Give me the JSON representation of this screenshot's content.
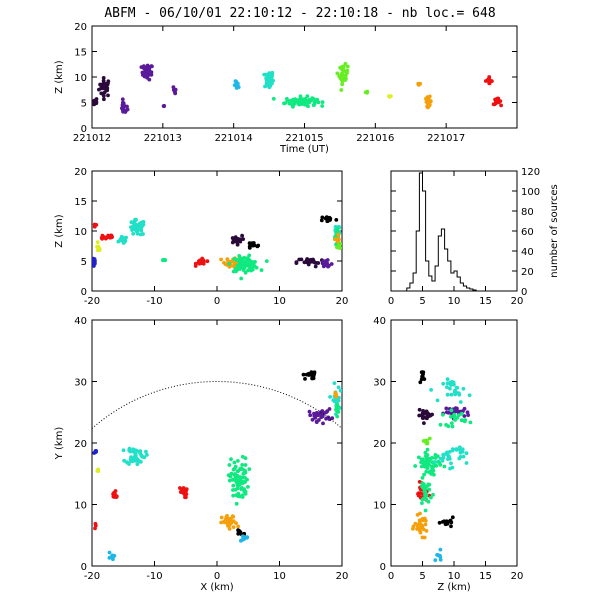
{
  "title": "ABFM - 06/10/01 22:10:12 - 22:10:18 - nb loc.=     648",
  "colors": {
    "black": "#000000",
    "eggplant": "#2a0a3a",
    "purple": "#5a1a9a",
    "blue": "#2222cc",
    "cyan": "#1fb6e8",
    "aqua": "#22e0c8",
    "green": "#10e880",
    "lime": "#66ee22",
    "yellow": "#ddee22",
    "orange": "#f5a00a",
    "red": "#ee1111"
  },
  "chart_data": [
    {
      "id": "time-height",
      "type": "scatter",
      "xlabel": "Time (UT)",
      "ylabel": "Z (km)",
      "xlim": [
        221012,
        221018
      ],
      "ylim": [
        0,
        20
      ],
      "x_ticks": [
        "221012",
        "221013",
        "221014",
        "221015",
        "221016",
        "221017"
      ],
      "y_ticks": [
        "0",
        "5",
        "10",
        "15",
        "20"
      ],
      "clusters": [
        {
          "color": "eggplant",
          "x": 221012.18,
          "y": 8.0,
          "sx": 0.08,
          "sy": 1.8,
          "n": 30
        },
        {
          "color": "eggplant",
          "x": 221012.05,
          "y": 5.0,
          "sx": 0.04,
          "sy": 0.9,
          "n": 8
        },
        {
          "color": "purple",
          "x": 221012.78,
          "y": 11.0,
          "sx": 0.08,
          "sy": 1.5,
          "n": 30
        },
        {
          "color": "purple",
          "x": 221012.45,
          "y": 4.0,
          "sx": 0.05,
          "sy": 1.3,
          "n": 16
        },
        {
          "color": "purple",
          "x": 221013.15,
          "y": 7.0,
          "sx": 0.04,
          "sy": 1.2,
          "n": 6
        },
        {
          "color": "purple",
          "x": 221013.02,
          "y": 4.2,
          "sx": 0.02,
          "sy": 0.3,
          "n": 3
        },
        {
          "color": "cyan",
          "x": 221014.05,
          "y": 8.3,
          "sx": 0.04,
          "sy": 0.8,
          "n": 8
        },
        {
          "color": "aqua",
          "x": 221014.5,
          "y": 9.5,
          "sx": 0.06,
          "sy": 1.8,
          "n": 40
        },
        {
          "color": "green",
          "x": 221014.95,
          "y": 5.2,
          "sx": 0.22,
          "sy": 0.9,
          "n": 90
        },
        {
          "color": "lime",
          "x": 221015.55,
          "y": 10.5,
          "sx": 0.06,
          "sy": 1.8,
          "n": 35
        },
        {
          "color": "lime",
          "x": 221015.88,
          "y": 7.0,
          "sx": 0.03,
          "sy": 0.4,
          "n": 4
        },
        {
          "color": "yellow",
          "x": 221016.2,
          "y": 6.3,
          "sx": 0.03,
          "sy": 0.3,
          "n": 3
        },
        {
          "color": "orange",
          "x": 221016.62,
          "y": 8.6,
          "sx": 0.03,
          "sy": 0.3,
          "n": 5
        },
        {
          "color": "orange",
          "x": 221016.75,
          "y": 5.2,
          "sx": 0.04,
          "sy": 0.9,
          "n": 22
        },
        {
          "color": "red",
          "x": 221017.6,
          "y": 9.3,
          "sx": 0.05,
          "sy": 0.6,
          "n": 12
        },
        {
          "color": "red",
          "x": 221017.72,
          "y": 5.2,
          "sx": 0.05,
          "sy": 0.6,
          "n": 20
        }
      ]
    },
    {
      "id": "x-height",
      "type": "scatter",
      "xlabel": "",
      "ylabel": "Z (km)",
      "xlim": [
        -20,
        20
      ],
      "ylim": [
        0,
        20
      ],
      "x_ticks": [
        "-20",
        "-10",
        "0",
        "10",
        "20"
      ],
      "y_ticks": [
        "0",
        "5",
        "10",
        "15",
        "20"
      ],
      "clusters": [
        {
          "color": "red",
          "x": -17.5,
          "y": 9.0,
          "sx": 1.2,
          "sy": 0.5,
          "n": 16
        },
        {
          "color": "red",
          "x": -19.5,
          "y": 11.0,
          "sx": 0.3,
          "sy": 0.5,
          "n": 5
        },
        {
          "color": "blue",
          "x": -19.7,
          "y": 5.0,
          "sx": 0.3,
          "sy": 1.5,
          "n": 12
        },
        {
          "color": "yellow",
          "x": -19.0,
          "y": 7.0,
          "sx": 0.4,
          "sy": 0.7,
          "n": 6
        },
        {
          "color": "aqua",
          "x": -12.8,
          "y": 10.5,
          "sx": 1.3,
          "sy": 1.3,
          "n": 45
        },
        {
          "color": "aqua",
          "x": -15.0,
          "y": 8.5,
          "sx": 0.6,
          "sy": 0.6,
          "n": 14
        },
        {
          "color": "green",
          "x": -8.5,
          "y": 5.0,
          "sx": 0.4,
          "sy": 0.3,
          "n": 5
        },
        {
          "color": "red",
          "x": -2.5,
          "y": 4.8,
          "sx": 0.8,
          "sy": 0.5,
          "n": 20
        },
        {
          "color": "orange",
          "x": 2.8,
          "y": 4.8,
          "sx": 1.5,
          "sy": 0.9,
          "n": 35
        },
        {
          "color": "green",
          "x": 4.5,
          "y": 4.5,
          "sx": 2.2,
          "sy": 1.2,
          "n": 70
        },
        {
          "color": "eggplant",
          "x": 3.0,
          "y": 8.5,
          "sx": 1.0,
          "sy": 0.7,
          "n": 18
        },
        {
          "color": "black",
          "x": 5.5,
          "y": 7.5,
          "sx": 1.5,
          "sy": 0.6,
          "n": 10
        },
        {
          "color": "eggplant",
          "x": 15.0,
          "y": 4.8,
          "sx": 2.2,
          "sy": 0.8,
          "n": 30
        },
        {
          "color": "purple",
          "x": 17.5,
          "y": 4.5,
          "sx": 1.0,
          "sy": 1.0,
          "n": 14
        },
        {
          "color": "black",
          "x": 17.8,
          "y": 12.0,
          "sx": 1.2,
          "sy": 0.5,
          "n": 14
        },
        {
          "color": "aqua",
          "x": 19.2,
          "y": 10.0,
          "sx": 0.5,
          "sy": 1.5,
          "n": 22
        },
        {
          "color": "green",
          "x": 19.3,
          "y": 9.0,
          "sx": 0.4,
          "sy": 1.5,
          "n": 12
        },
        {
          "color": "orange",
          "x": 19.3,
          "y": 8.5,
          "sx": 0.3,
          "sy": 1.0,
          "n": 8
        },
        {
          "color": "lime",
          "x": 19.5,
          "y": 7.5,
          "sx": 0.3,
          "sy": 0.7,
          "n": 5
        }
      ]
    },
    {
      "id": "histogram",
      "type": "line",
      "xlabel": "",
      "ylabel": "number of sources",
      "xlim": [
        0,
        20
      ],
      "ylim": [
        0,
        120
      ],
      "x_ticks": [
        "0",
        "5",
        "10",
        "15",
        "20"
      ],
      "y_ticks": [
        "0",
        "20",
        "40",
        "60",
        "80",
        "100",
        "120"
      ],
      "bin_edges": [
        2.5,
        3,
        3.5,
        4,
        4.5,
        5,
        5.5,
        6,
        6.5,
        7,
        7.5,
        8,
        8.5,
        9,
        9.5,
        10,
        10.5,
        11,
        11.5,
        12,
        12.5,
        13,
        13.5
      ],
      "counts": [
        3,
        8,
        18,
        60,
        118,
        100,
        30,
        15,
        10,
        25,
        55,
        62,
        42,
        30,
        18,
        20,
        14,
        8,
        5,
        3,
        2,
        1
      ]
    },
    {
      "id": "plan-view",
      "type": "scatter",
      "xlabel": "X (km)",
      "ylabel": "Y (km)",
      "xlim": [
        -20,
        20
      ],
      "ylim": [
        0,
        40
      ],
      "x_ticks": [
        "-20",
        "-10",
        "0",
        "10",
        "20"
      ],
      "y_ticks": [
        "0",
        "10",
        "20",
        "30",
        "40"
      ],
      "range_arc": {
        "radius": 30,
        "style": "dotted"
      },
      "clusters": [
        {
          "color": "aqua",
          "x": -13.0,
          "y": 18.0,
          "sx": 1.5,
          "sy": 1.5,
          "n": 45
        },
        {
          "color": "blue",
          "x": -19.5,
          "y": 18.5,
          "sx": 0.3,
          "sy": 0.4,
          "n": 5
        },
        {
          "color": "yellow",
          "x": -19.0,
          "y": 15.5,
          "sx": 0.4,
          "sy": 0.4,
          "n": 4
        },
        {
          "color": "red",
          "x": -16.5,
          "y": 11.5,
          "sx": 0.8,
          "sy": 0.6,
          "n": 12
        },
        {
          "color": "red",
          "x": -19.7,
          "y": 6.5,
          "sx": 0.3,
          "sy": 0.4,
          "n": 3
        },
        {
          "color": "cyan",
          "x": -17.0,
          "y": 1.5,
          "sx": 0.5,
          "sy": 0.8,
          "n": 8
        },
        {
          "color": "red",
          "x": -5.5,
          "y": 12.0,
          "sx": 0.7,
          "sy": 0.9,
          "n": 18
        },
        {
          "color": "green",
          "x": 3.5,
          "y": 14.0,
          "sx": 1.5,
          "sy": 3.5,
          "n": 80
        },
        {
          "color": "orange",
          "x": 2.0,
          "y": 7.0,
          "sx": 1.2,
          "sy": 1.2,
          "n": 35
        },
        {
          "color": "black",
          "x": 3.8,
          "y": 5.5,
          "sx": 0.8,
          "sy": 0.6,
          "n": 10
        },
        {
          "color": "cyan",
          "x": 4.5,
          "y": 4.5,
          "sx": 0.6,
          "sy": 0.6,
          "n": 8
        },
        {
          "color": "purple",
          "x": 16.5,
          "y": 24.5,
          "sx": 1.8,
          "sy": 1.0,
          "n": 30
        },
        {
          "color": "black",
          "x": 15.0,
          "y": 31.0,
          "sx": 1.2,
          "sy": 0.6,
          "n": 14
        },
        {
          "color": "aqua",
          "x": 19.0,
          "y": 27.0,
          "sx": 0.6,
          "sy": 2.5,
          "n": 20
        },
        {
          "color": "green",
          "x": 19.2,
          "y": 25.5,
          "sx": 0.5,
          "sy": 1.0,
          "n": 10
        },
        {
          "color": "orange",
          "x": 19.0,
          "y": 28.0,
          "sx": 0.4,
          "sy": 0.5,
          "n": 5
        }
      ]
    },
    {
      "id": "height-y",
      "type": "scatter",
      "xlabel": "Z (km)",
      "ylabel": "",
      "xlim": [
        0,
        20
      ],
      "ylim": [
        0,
        40
      ],
      "x_ticks": [
        "0",
        "5",
        "10",
        "15",
        "20"
      ],
      "y_ticks": [
        "0",
        "10",
        "20",
        "30",
        "40"
      ],
      "clusters": [
        {
          "color": "eggplant",
          "x": 5.5,
          "y": 24.5,
          "sx": 1.2,
          "sy": 0.8,
          "n": 20
        },
        {
          "color": "purple",
          "x": 10.5,
          "y": 25.0,
          "sx": 2.0,
          "sy": 0.8,
          "n": 30
        },
        {
          "color": "black",
          "x": 5.0,
          "y": 31.0,
          "sx": 0.5,
          "sy": 0.8,
          "n": 10
        },
        {
          "color": "aqua",
          "x": 10.5,
          "y": 28.5,
          "sx": 2.2,
          "sy": 1.8,
          "n": 25
        },
        {
          "color": "green",
          "x": 10.0,
          "y": 24.0,
          "sx": 2.0,
          "sy": 1.2,
          "n": 20
        },
        {
          "color": "green",
          "x": 6.0,
          "y": 16.5,
          "sx": 1.8,
          "sy": 2.0,
          "n": 60
        },
        {
          "color": "aqua",
          "x": 9.5,
          "y": 18.0,
          "sx": 2.5,
          "sy": 1.8,
          "n": 30
        },
        {
          "color": "red",
          "x": 5.0,
          "y": 12.0,
          "sx": 0.8,
          "sy": 1.5,
          "n": 25
        },
        {
          "color": "green",
          "x": 5.5,
          "y": 12.0,
          "sx": 1.0,
          "sy": 2.5,
          "n": 25
        },
        {
          "color": "orange",
          "x": 4.8,
          "y": 6.5,
          "sx": 1.0,
          "sy": 1.5,
          "n": 35
        },
        {
          "color": "black",
          "x": 9.0,
          "y": 7.0,
          "sx": 1.0,
          "sy": 0.8,
          "n": 12
        },
        {
          "color": "cyan",
          "x": 7.5,
          "y": 1.5,
          "sx": 0.8,
          "sy": 0.8,
          "n": 8
        },
        {
          "color": "lime",
          "x": 5.5,
          "y": 20.0,
          "sx": 0.8,
          "sy": 0.8,
          "n": 8
        }
      ]
    }
  ]
}
